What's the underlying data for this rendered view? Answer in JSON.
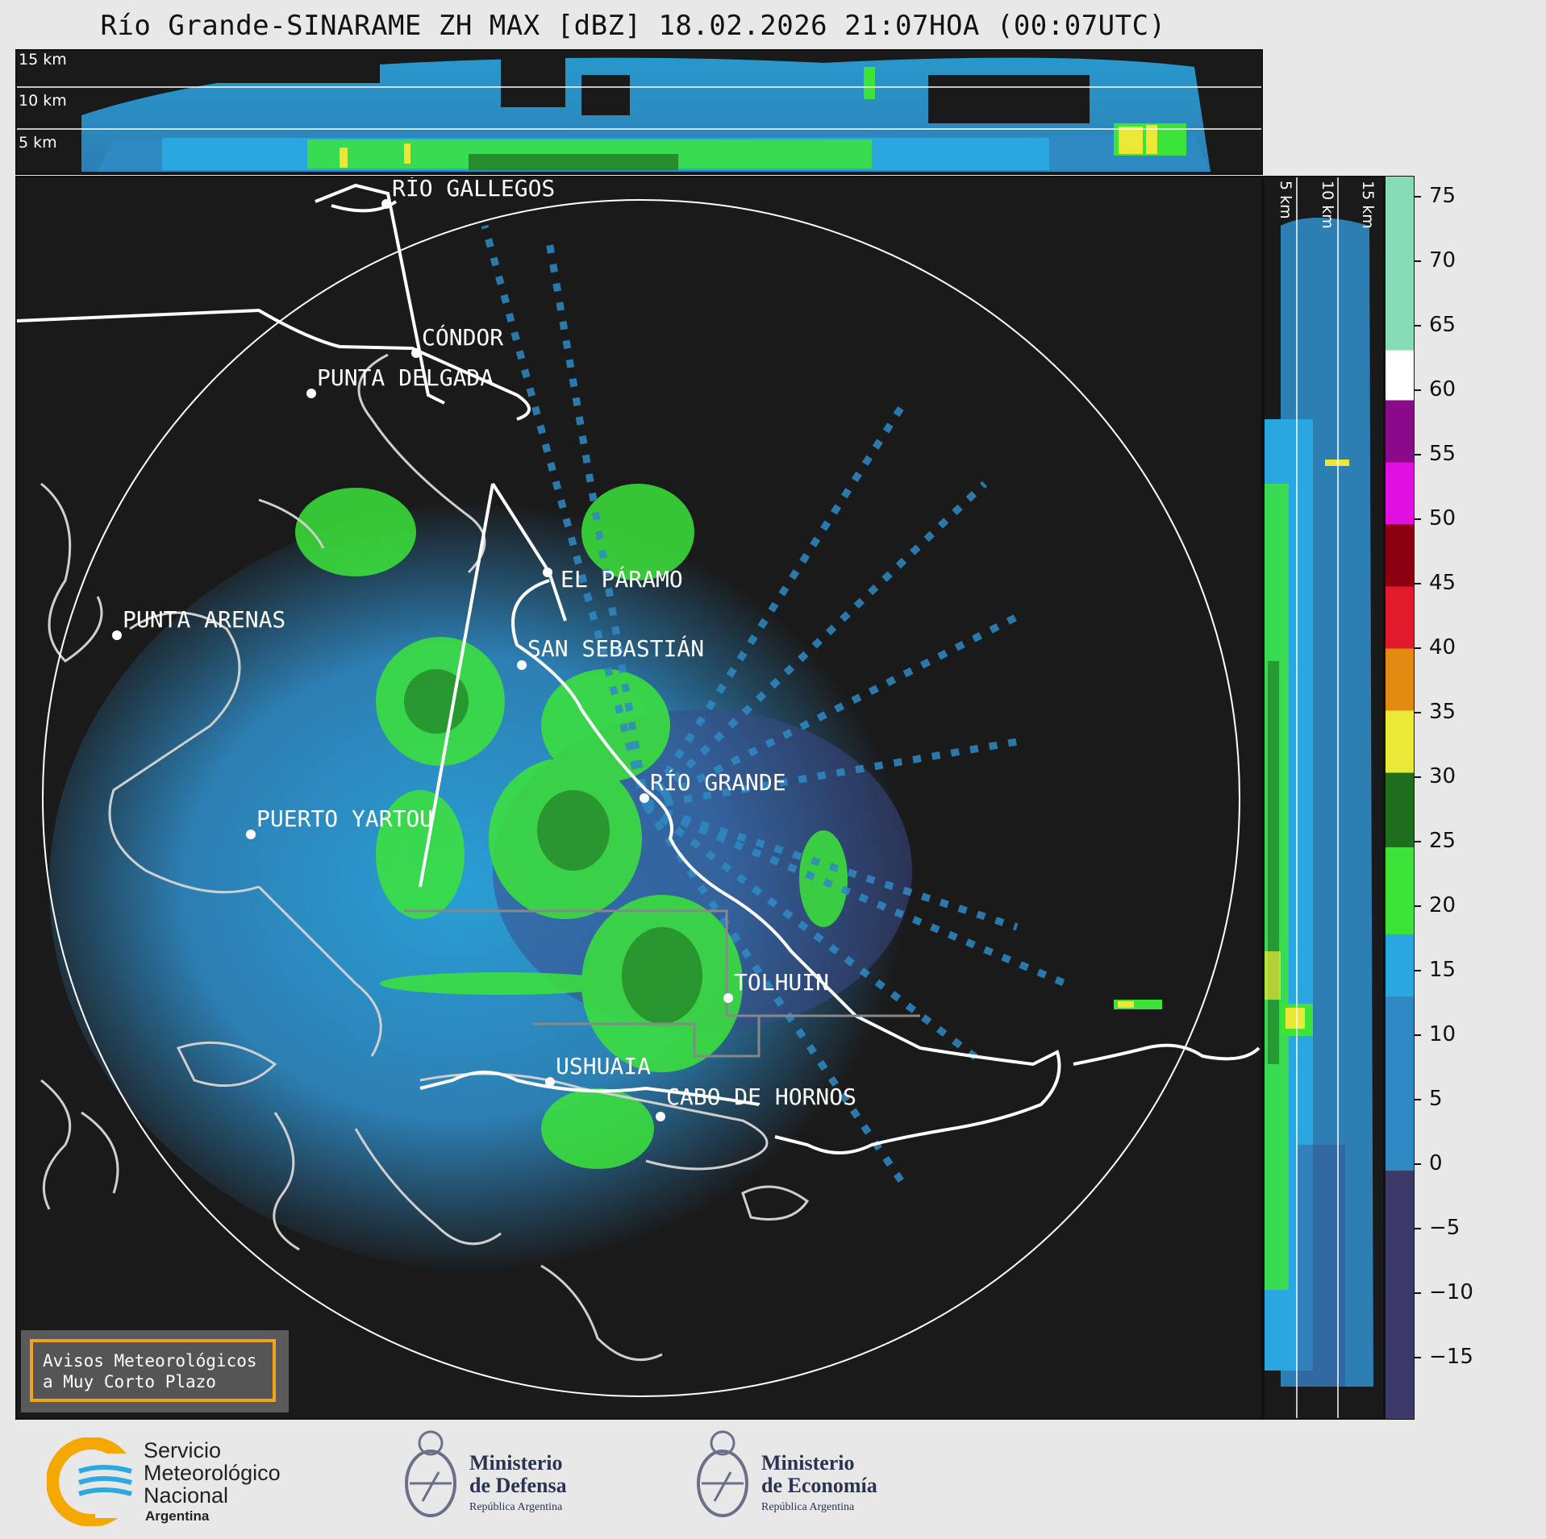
{
  "title": "Río Grande-SINARAME ZH MAX [dBZ] 18.02.2026 21:07HOA (00:07UTC)",
  "top_panel": {
    "height_labels": [
      "15 km",
      "10 km",
      "5 km"
    ]
  },
  "side_panel": {
    "height_labels": [
      "5 km",
      "10 km",
      "15 km"
    ]
  },
  "colorbar": {
    "unit": "dBZ",
    "ticks": [
      "75",
      "70",
      "65",
      "60",
      "55",
      "50",
      "45",
      "40",
      "35",
      "30",
      "25",
      "20",
      "15",
      "10",
      "5",
      "0",
      "−5",
      "−10",
      "−15"
    ],
    "colors": {
      "deep_purple": "#3b3a68",
      "blue": "#2f8ac4",
      "light_blue": "#2aa6e0",
      "green": "#3ce43a",
      "dark_green": "#1e6e1e",
      "yellow": "#ece838",
      "orange": "#e08a12",
      "red": "#e01a2a",
      "dark_red": "#8a0010",
      "magenta": "#e010e0",
      "purple": "#8a0a8a",
      "white": "#ffffff",
      "mint": "#86dcb6"
    }
  },
  "cities": [
    {
      "name": "RÍO GALLEGOS"
    },
    {
      "name": "CÓNDOR"
    },
    {
      "name": "PUNTA DELGADA"
    },
    {
      "name": "EL PÁRAMO"
    },
    {
      "name": "PUNTA ARENAS"
    },
    {
      "name": "SAN SEBASTIÁN"
    },
    {
      "name": "RÍO GRANDE"
    },
    {
      "name": "PUERTO YARTOU"
    },
    {
      "name": "TOLHUIN"
    },
    {
      "name": "USHUAIA"
    },
    {
      "name": "CABO DE HORNOS"
    }
  ],
  "warning_box": {
    "line1": "Avisos Meteorológicos",
    "line2": "a Muy Corto Plazo"
  },
  "logos": {
    "smn": {
      "line1": "Servicio",
      "line2": "Meteorológico",
      "line3": "Nacional",
      "line4": "Argentina"
    },
    "defensa": {
      "line1": "Ministerio",
      "line2": "de Defensa",
      "line3": "República Argentina"
    },
    "economia": {
      "line1": "Ministerio",
      "line2": "de Economía",
      "line3": "República Argentina"
    }
  }
}
